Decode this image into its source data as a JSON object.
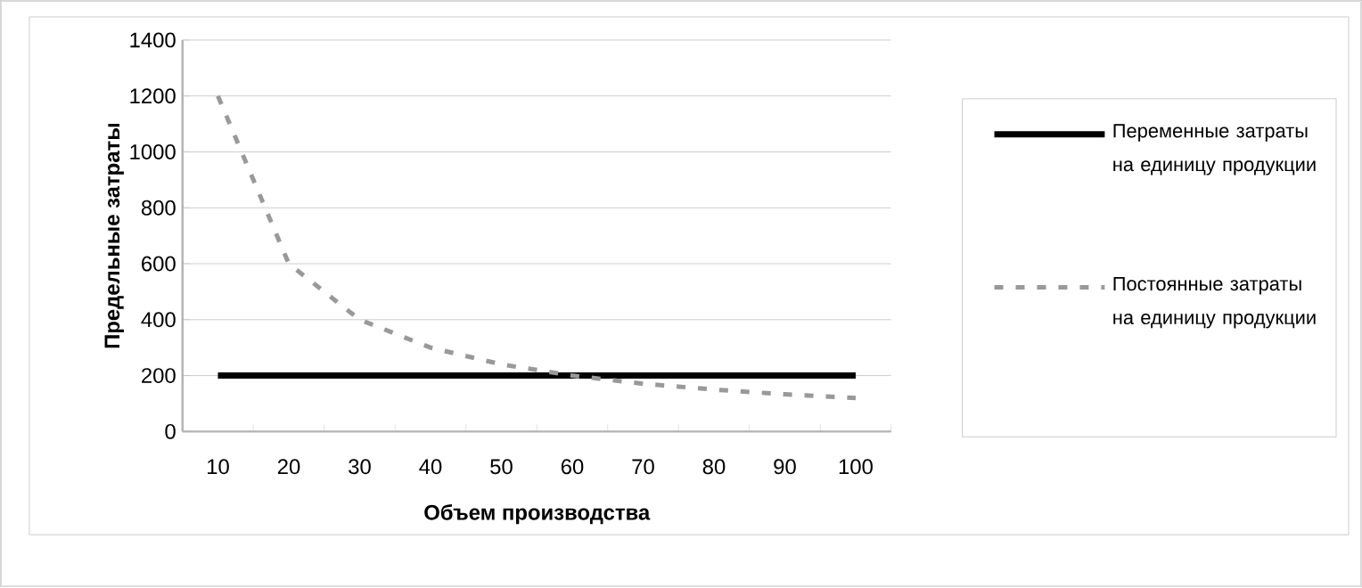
{
  "chart_data": {
    "type": "line",
    "xlabel": "Объем производства",
    "ylabel": "Предельные затраты",
    "categories": [
      "10",
      "20",
      "30",
      "40",
      "50",
      "60",
      "70",
      "80",
      "90",
      "100"
    ],
    "series": [
      {
        "name": "Переменные затраты на единицу продукции",
        "color": "#000000",
        "line_style": "solid",
        "values": [
          200,
          200,
          200,
          200,
          200,
          200,
          200,
          200,
          200,
          200
        ]
      },
      {
        "name": "Постоянные затраты на единицу продукции",
        "color": "#999999",
        "line_style": "dashed",
        "values": [
          1200,
          600,
          400,
          300,
          240,
          200,
          171,
          150,
          133,
          120
        ]
      }
    ],
    "ylim": [
      0,
      1400
    ],
    "yticks": [
      0,
      200,
      400,
      600,
      800,
      1000,
      1200,
      1400
    ],
    "grid": "y",
    "legend": "right",
    "marker": "none"
  }
}
